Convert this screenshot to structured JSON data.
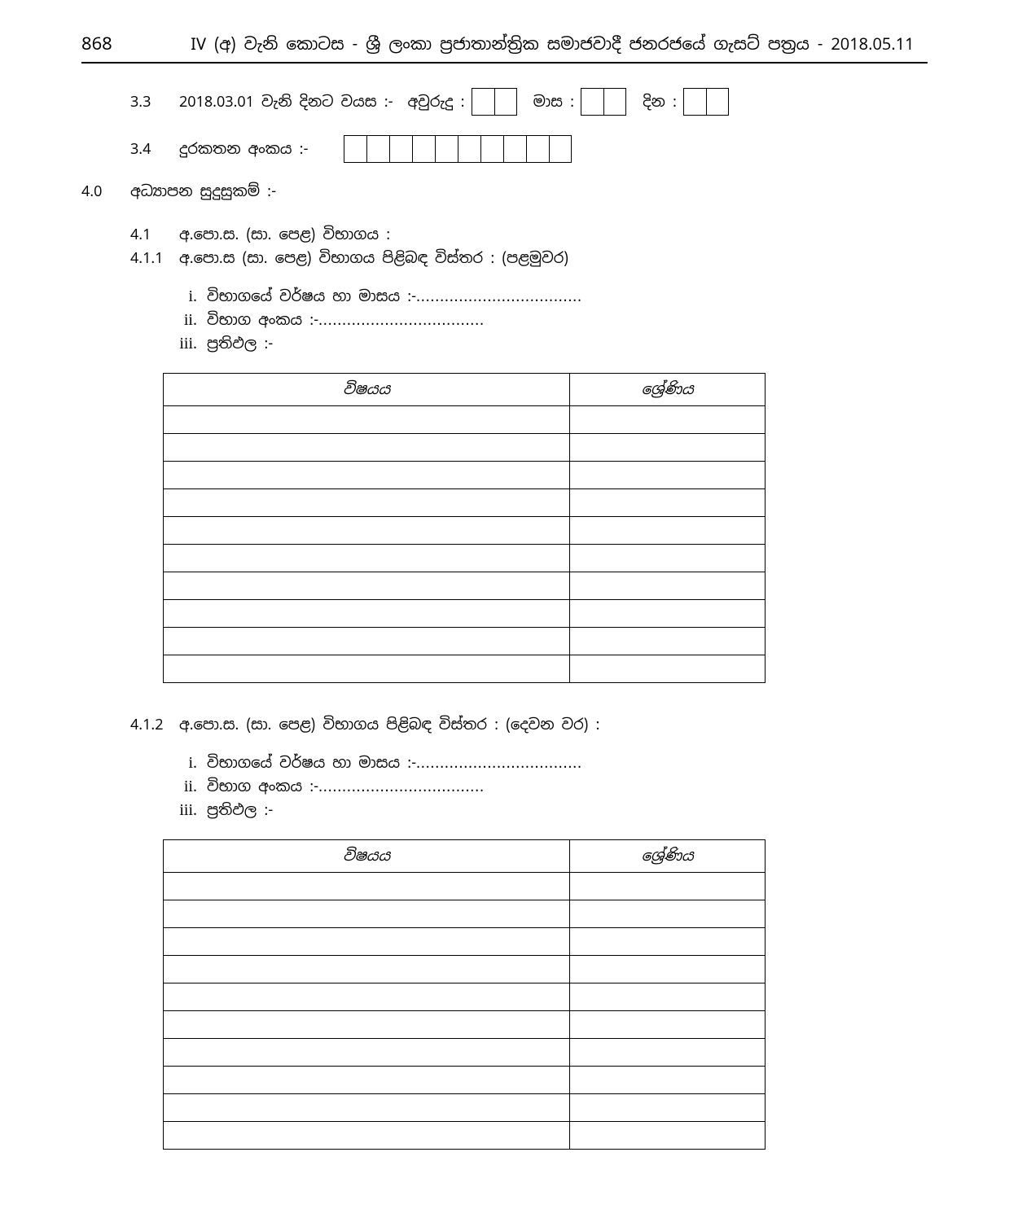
{
  "page_number": "868",
  "header_title": "IV (අ) වැනි කොටස - ශ්‍රී ලංකා ප්‍රජාතාන්ත්‍රික සමාජවාදී ජනරජයේ ගැසට් පත්‍රය - 2018.05.11",
  "q33": {
    "num": "3.3",
    "label": "2018.03.01 වැනි දිනට වයස :-  අවුරුදු :",
    "months": "මාස :",
    "days": "දින :",
    "years_boxes": 2,
    "months_boxes": 2,
    "days_boxes": 2
  },
  "q34": {
    "num": "3.4",
    "label": "දුරකතන අංකය :-",
    "boxes": 10
  },
  "q40": {
    "num": "4.0",
    "label": "අධ්‍යාපන සුදුසුකම් :-"
  },
  "q41": {
    "num": "4.1",
    "label": "අ.පො.ස. (සා. පෙළ) විභාගය :"
  },
  "q411": {
    "num": "4.1.1",
    "label": "අ.පො.ස (සා. පෙළ) විභාගය පිළිබඳ විස්තර : (පළමුවර)"
  },
  "q412": {
    "num": "4.1.2",
    "label": "අ.පො.ස. (සා. පෙළ) විභාගය පිළිබඳ විස්තර : (දෙවන වර) :"
  },
  "roman": {
    "i": "i.",
    "ii": "ii.",
    "iii": "iii.",
    "r1": "විභාගයේ වර්ෂය හා මාසය :- ",
    "r2": "විභාග අංකය :- ",
    "r3": "ප්‍රතිඵල :-",
    "dots": "..................................."
  },
  "table": {
    "subject_header": "විෂයය",
    "grade_header": "ශ්‍රේණිය",
    "row_count": 10
  }
}
